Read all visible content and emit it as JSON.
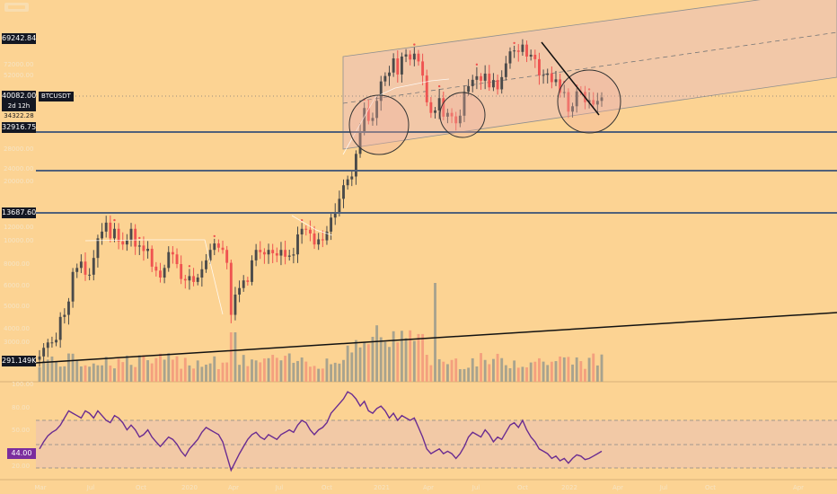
{
  "colors": {
    "background": "#fcd393",
    "candle_up": "#4a4a4a",
    "candle_down": "#ef5350",
    "volume_up": "#a8a38e",
    "volume_down": "#f4a07e",
    "rsi_line": "#6a2c91",
    "rsi_band": "#f2c9a6",
    "channel_fill": "#f2c8a8",
    "level_line": "#50607a",
    "tag_bg": "#131722",
    "tag_text": "#ffffff",
    "rsi_tag_bg": "#7b2d9e"
  },
  "icons": {
    "logo": "brand-logo-icon"
  },
  "price_axis": {
    "faded_ticks": [
      "72000.00",
      "52000.00",
      "40000.00",
      "32000.00",
      "28000.00",
      "24000.00",
      "20000.00",
      "16000.00",
      "12000.00",
      "10000.00",
      "8000.00",
      "6000.00",
      "5000.00",
      "4000.00",
      "3000.00"
    ],
    "volume_ticks": [
      "3000.00"
    ]
  },
  "labels": {
    "high": "69242.84",
    "last_price": "40082.00",
    "symbol": "BTCUSDT",
    "countdown": "2d 12h",
    "sub_price": "34322.28",
    "level1": "32916.75",
    "level2": "13687.60",
    "volume": "291.149K",
    "rsi": "44.00"
  },
  "rsi_axis": {
    "ticks": [
      "100.00",
      "80.00",
      "50.00",
      "20.00"
    ]
  },
  "time_axis": {
    "ticks": [
      "Mar",
      "Jul",
      "Oct",
      "2020",
      "Apr",
      "Jul",
      "Oct",
      "2021",
      "Apr",
      "Jul",
      "Oct",
      "2022",
      "Apr",
      "Jul",
      "Oct",
      "Apr"
    ]
  },
  "chart_data": {
    "type": "candlestick",
    "symbol": "BTCUSDT",
    "interval": "1W",
    "x_start": "2019-01",
    "x_end": "2022-03",
    "y_scale": "log",
    "levels": [
      69242.84,
      32916.75,
      13687.6
    ],
    "last_price": 40082.0,
    "weekly_close_path": [
      3600,
      3900,
      4100,
      4100,
      4200,
      5200,
      5300,
      6000,
      7900,
      8200,
      8700,
      7700,
      7700,
      9000,
      10800,
      11500,
      12500,
      10800,
      11800,
      10500,
      10200,
      10600,
      11800,
      10000,
      10100,
      9600,
      9800,
      8300,
      8000,
      7500,
      8200,
      9500,
      9300,
      8500,
      7400,
      7300,
      7600,
      7200,
      7500,
      8100,
      8800,
      9700,
      10300,
      9900,
      9700,
      8600,
      5300,
      6400,
      6800,
      7300,
      7200,
      8800,
      9700,
      9500,
      9300,
      9700,
      9400,
      9200,
      9700,
      9100,
      9200,
      9300,
      11200,
      11800,
      11700,
      11300,
      10200,
      10700,
      10600,
      11500,
      13100,
      13800,
      15600,
      17700,
      18700,
      19200,
      23700,
      29100,
      36300,
      32200,
      33100,
      38800,
      46500,
      48900,
      50500,
      57600,
      49600,
      58600,
      59800,
      57000,
      60200,
      56000,
      49100,
      38300,
      34700,
      35500,
      39800,
      33500,
      34700,
      33600,
      31500,
      33800,
      42200,
      44500,
      47200,
      48800,
      46800,
      50000,
      44000,
      47100,
      43200,
      48400,
      55000,
      61500,
      62000,
      61200,
      65500,
      58600,
      59600,
      57200,
      49200,
      49400,
      50100,
      46200,
      47400,
      41800,
      42100,
      35100,
      36900,
      42400,
      42200,
      38300,
      39100,
      37500,
      38800,
      40082
    ],
    "rsi": {
      "values": [
        46,
        52,
        57,
        60,
        62,
        66,
        72,
        78,
        76,
        74,
        72,
        78,
        76,
        72,
        78,
        74,
        70,
        68,
        74,
        72,
        68,
        62,
        66,
        62,
        56,
        58,
        62,
        56,
        52,
        48,
        52,
        56,
        54,
        50,
        44,
        40,
        46,
        50,
        54,
        60,
        64,
        62,
        60,
        58,
        52,
        40,
        28,
        35,
        42,
        48,
        54,
        58,
        60,
        56,
        54,
        58,
        56,
        54,
        58,
        60,
        62,
        60,
        66,
        70,
        68,
        62,
        58,
        62,
        64,
        68,
        76,
        80,
        84,
        88,
        94,
        92,
        88,
        82,
        86,
        78,
        76,
        80,
        82,
        78,
        72,
        76,
        70,
        74,
        72,
        70,
        72,
        64,
        56,
        46,
        42,
        44,
        46,
        42,
        44,
        42,
        38,
        42,
        48,
        56,
        60,
        58,
        56,
        62,
        58,
        52,
        56,
        54,
        60,
        66,
        68,
        64,
        70,
        62,
        56,
        52,
        46,
        44,
        42,
        38,
        40,
        36,
        38,
        34,
        38,
        41,
        40,
        37,
        38,
        40,
        42,
        44
      ],
      "overbought": 70,
      "middle": 50,
      "oversold": 30
    }
  }
}
